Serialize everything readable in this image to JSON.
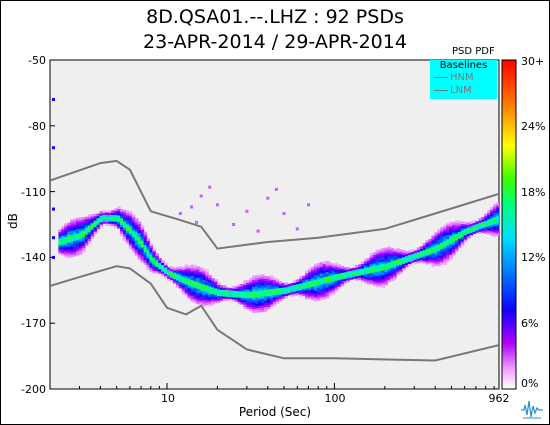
{
  "title_line1": "8D.QSA01.--.LHZ : 92 PSDs",
  "title_line2": "23-APR-2014 / 29-APR-2014",
  "colorbar_title": "PSD PDF",
  "legend": {
    "title": "Baselines",
    "items": [
      "HNM",
      "LNM"
    ]
  },
  "colors": {
    "background": "#efefef",
    "legend_bg": "#00ffff",
    "baseline": "#777777"
  },
  "chart_data": {
    "type": "heatmap",
    "xlabel": "Period (Sec)",
    "ylabel": "dB",
    "xscale": "log",
    "xlim": [
      2,
      962
    ],
    "ylim": [
      -200,
      -50
    ],
    "x_ticks": [
      "10",
      "100",
      "962"
    ],
    "y_ticks": [
      "-50",
      "-80",
      "-110",
      "-140",
      "-170",
      "-200"
    ],
    "colorbar_ticks": [
      "30+",
      "24%",
      "18%",
      "12%",
      "6%",
      "0%"
    ],
    "colorbar_range": [
      0,
      30
    ],
    "series": [
      {
        "name": "HNM",
        "points": [
          [
            2,
            -105
          ],
          [
            4,
            -97
          ],
          [
            5,
            -96
          ],
          [
            6,
            -100
          ],
          [
            8,
            -119
          ],
          [
            12,
            -123
          ],
          [
            16,
            -126
          ],
          [
            20,
            -136
          ],
          [
            40,
            -133
          ],
          [
            80,
            -131
          ],
          [
            200,
            -127
          ],
          [
            400,
            -120
          ],
          [
            962,
            -111
          ]
        ]
      },
      {
        "name": "LNM",
        "points": [
          [
            2,
            -153
          ],
          [
            3,
            -149
          ],
          [
            5,
            -144
          ],
          [
            6,
            -145
          ],
          [
            8,
            -152
          ],
          [
            10,
            -163
          ],
          [
            13,
            -166
          ],
          [
            16,
            -162
          ],
          [
            20,
            -173
          ],
          [
            30,
            -182
          ],
          [
            50,
            -186
          ],
          [
            100,
            -186
          ],
          [
            400,
            -187
          ],
          [
            962,
            -180
          ]
        ]
      },
      {
        "name": "Mode",
        "points": [
          [
            2.2,
            -133
          ],
          [
            3,
            -130
          ],
          [
            4,
            -122
          ],
          [
            5,
            -122
          ],
          [
            6,
            -128
          ],
          [
            7,
            -134
          ],
          [
            8,
            -141
          ],
          [
            10,
            -147
          ],
          [
            13,
            -151
          ],
          [
            20,
            -156
          ],
          [
            30,
            -157
          ],
          [
            50,
            -155
          ],
          [
            100,
            -149
          ],
          [
            200,
            -144
          ],
          [
            400,
            -136
          ],
          [
            600,
            -128
          ],
          [
            962,
            -122
          ]
        ]
      }
    ]
  }
}
